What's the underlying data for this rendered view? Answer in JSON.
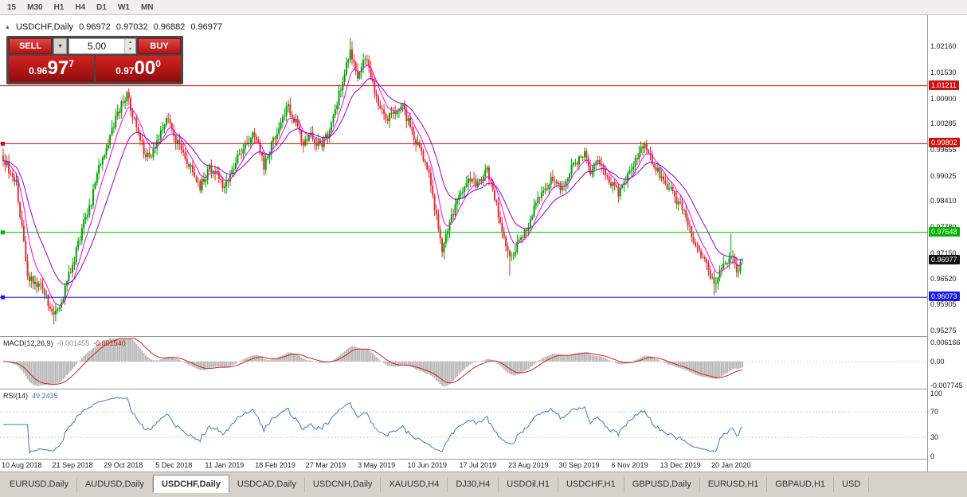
{
  "toolbar": {
    "timeframes": [
      "15",
      "M30",
      "H1",
      "H4",
      "D1",
      "W1",
      "MN"
    ]
  },
  "chart": {
    "symbol": "USDCHF,Daily",
    "open": "0.96972",
    "high": "0.97032",
    "low": "0.96882",
    "close": "0.96977"
  },
  "trade_panel": {
    "sell_label": "SELL",
    "buy_label": "BUY",
    "volume": "5.00",
    "sell_price": {
      "main": "0.96",
      "big": "97",
      "sup": "7"
    },
    "buy_price": {
      "main": "0.97",
      "big": "00",
      "sup": "0"
    }
  },
  "price_axis": {
    "labels": [
      "1.02160",
      "1.01530",
      "1.00900",
      "1.00285",
      "0.99655",
      "0.99025",
      "0.98410",
      "0.97780",
      "0.97150",
      "0.96520",
      "0.95905",
      "0.95275"
    ]
  },
  "hlines": [
    {
      "label": "1.01211",
      "value": 1.01211,
      "color": "#cc1111",
      "handles": false
    },
    {
      "label": "0.99802",
      "value": 0.99802,
      "color": "#cc1111",
      "handles": true
    },
    {
      "label": "0.97648",
      "value": 0.97648,
      "color": "#00b300",
      "handles": true
    },
    {
      "label": "0.96073",
      "value": 0.96073,
      "color": "#1a1ae6",
      "handles": true
    }
  ],
  "current_price": {
    "label": "0.96977",
    "value": 0.96977,
    "color": "#111111"
  },
  "indicators": {
    "macd": {
      "name": "MACD(12,26,9)",
      "main_value": "-0.001455",
      "signal_value": "-0.001540",
      "axis_labels": [
        "0.006166",
        "0.00",
        "-0.007745"
      ],
      "axis_values": [
        0.006166,
        0,
        -0.007745
      ],
      "histogram_color": "#b9b9b9",
      "signal_color": "#cc2222"
    },
    "rsi": {
      "name": "RSI(14)",
      "value": "49.2435",
      "axis_labels": [
        "100",
        "70",
        "30",
        "0"
      ],
      "axis_values": [
        100,
        70,
        30,
        0
      ],
      "levels": [
        70,
        30
      ],
      "color": "#3e7bbf"
    }
  },
  "x_axis": {
    "ticks": [
      {
        "label": "10 Aug 2018",
        "i": 0
      },
      {
        "label": "21 Sep 2018",
        "i": 37
      },
      {
        "label": "29 Oct 2018",
        "i": 64
      },
      {
        "label": "5 Dec 2018",
        "i": 91
      },
      {
        "label": "11 Jan 2019",
        "i": 118
      },
      {
        "label": "18 Feb 2019",
        "i": 145
      },
      {
        "label": "27 Mar 2019",
        "i": 172
      },
      {
        "label": "3 May 2019",
        "i": 199
      },
      {
        "label": "10 Jun 2019",
        "i": 226
      },
      {
        "label": "17 Jul 2019",
        "i": 253
      },
      {
        "label": "23 Aug 2019",
        "i": 280
      },
      {
        "label": "30 Sep 2019",
        "i": 307
      },
      {
        "label": "6 Nov 2019",
        "i": 334
      },
      {
        "label": "13 Dec 2019",
        "i": 361
      },
      {
        "label": "20 Jan 2020",
        "i": 388
      }
    ]
  },
  "tabs": [
    {
      "label": "EURUSD,Daily",
      "active": false
    },
    {
      "label": "AUDUSD,Daily",
      "active": false
    },
    {
      "label": "USDCHF,Daily",
      "active": true
    },
    {
      "label": "USDCAD,Daily",
      "active": false
    },
    {
      "label": "USDCNH,Daily",
      "active": false
    },
    {
      "label": "XAUUSD,H4",
      "active": false
    },
    {
      "label": "DJ30,H4",
      "active": false
    },
    {
      "label": "USDOil,H1",
      "active": false
    },
    {
      "label": "USDCHF,H1",
      "active": false
    },
    {
      "label": "GBPUSD,Daily",
      "active": false
    },
    {
      "label": "EURUSD,H1",
      "active": false
    },
    {
      "label": "GBPAUD,H1",
      "active": false
    },
    {
      "label": "USD",
      "active": false
    }
  ],
  "chart_data": {
    "type": "candlestick",
    "symbol": "USDCHF",
    "timeframe": "Daily",
    "visible_range": {
      "price_top": 1.0273,
      "price_bottom": 0.9515,
      "start": "10 Aug 2018",
      "end": "20 Jan 2020"
    },
    "num_candles": 395,
    "colors": {
      "up": "#00a000",
      "down": "#e03030"
    },
    "ma": [
      {
        "period": 8,
        "color": "#ff00ff"
      },
      {
        "period": 21,
        "color": "#9400d3"
      }
    ],
    "close_anchors": [
      [
        0,
        0.9945
      ],
      [
        7,
        0.9885
      ],
      [
        13,
        0.966
      ],
      [
        20,
        0.9635
      ],
      [
        27,
        0.9565
      ],
      [
        30,
        0.958
      ],
      [
        34,
        0.9645
      ],
      [
        37,
        0.9685
      ],
      [
        43,
        0.979
      ],
      [
        47,
        0.984
      ],
      [
        51,
        0.992
      ],
      [
        57,
        1.0
      ],
      [
        63,
        1.0075
      ],
      [
        66,
        1.0098
      ],
      [
        70,
        1.0035
      ],
      [
        75,
        0.9965
      ],
      [
        78,
        0.9938
      ],
      [
        83,
        1.0
      ],
      [
        87,
        1.0048
      ],
      [
        92,
        0.9992
      ],
      [
        97,
        0.9945
      ],
      [
        102,
        0.9905
      ],
      [
        105,
        0.9878
      ],
      [
        110,
        0.992
      ],
      [
        115,
        0.99
      ],
      [
        118,
        0.9872
      ],
      [
        123,
        0.993
      ],
      [
        128,
        0.9968
      ],
      [
        133,
        1.0
      ],
      [
        136,
        0.999
      ],
      [
        139,
        0.9925
      ],
      [
        143,
        0.9978
      ],
      [
        148,
        1.004
      ],
      [
        152,
        1.0068
      ],
      [
        156,
        1.003
      ],
      [
        160,
        0.9982
      ],
      [
        164,
        1.0002
      ],
      [
        169,
        0.9972
      ],
      [
        174,
        1.0012
      ],
      [
        180,
        1.012
      ],
      [
        185,
        1.0205
      ],
      [
        189,
        1.0148
      ],
      [
        193,
        1.0192
      ],
      [
        199,
        1.0092
      ],
      [
        204,
        1.0042
      ],
      [
        209,
        1.006
      ],
      [
        213,
        1.0068
      ],
      [
        218,
        1.0012
      ],
      [
        223,
        0.9952
      ],
      [
        227,
        0.9905
      ],
      [
        231,
        0.98
      ],
      [
        234,
        0.9725
      ],
      [
        238,
        0.9788
      ],
      [
        243,
        0.985
      ],
      [
        248,
        0.9898
      ],
      [
        253,
        0.9882
      ],
      [
        258,
        0.9918
      ],
      [
        262,
        0.9852
      ],
      [
        266,
        0.9762
      ],
      [
        270,
        0.9705
      ],
      [
        274,
        0.9732
      ],
      [
        279,
        0.9772
      ],
      [
        283,
        0.982
      ],
      [
        288,
        0.9868
      ],
      [
        293,
        0.9898
      ],
      [
        298,
        0.9872
      ],
      [
        303,
        0.9918
      ],
      [
        307,
        0.9948
      ],
      [
        310,
        0.996
      ],
      [
        313,
        0.9912
      ],
      [
        318,
        0.994
      ],
      [
        323,
        0.9892
      ],
      [
        328,
        0.9862
      ],
      [
        333,
        0.9902
      ],
      [
        338,
        0.995
      ],
      [
        342,
        0.9978
      ],
      [
        346,
        0.994
      ],
      [
        350,
        0.9902
      ],
      [
        354,
        0.988
      ],
      [
        359,
        0.9842
      ],
      [
        363,
        0.982
      ],
      [
        367,
        0.9762
      ],
      [
        371,
        0.9712
      ],
      [
        375,
        0.9682
      ],
      [
        379,
        0.9642
      ],
      [
        383,
        0.9678
      ],
      [
        388,
        0.9712
      ],
      [
        391,
        0.9668
      ],
      [
        394,
        0.96977
      ]
    ],
    "wick_overrides": [
      {
        "i": 27,
        "low": 0.9542
      },
      {
        "i": 185,
        "high": 1.0237
      },
      {
        "i": 186,
        "high": 1.0228
      },
      {
        "i": 234,
        "low": 0.9705
      },
      {
        "i": 270,
        "low": 0.966
      },
      {
        "i": 379,
        "low": 0.9612
      },
      {
        "i": 380,
        "low": 0.9618
      },
      {
        "i": 388,
        "high": 0.9762
      }
    ],
    "noise": {
      "seed": 9,
      "amp": 0.0011,
      "wick": 0.0016
    },
    "last_ohlc": {
      "open": 0.96972,
      "high": 0.97032,
      "low": 0.96882,
      "close": 0.96977
    }
  }
}
